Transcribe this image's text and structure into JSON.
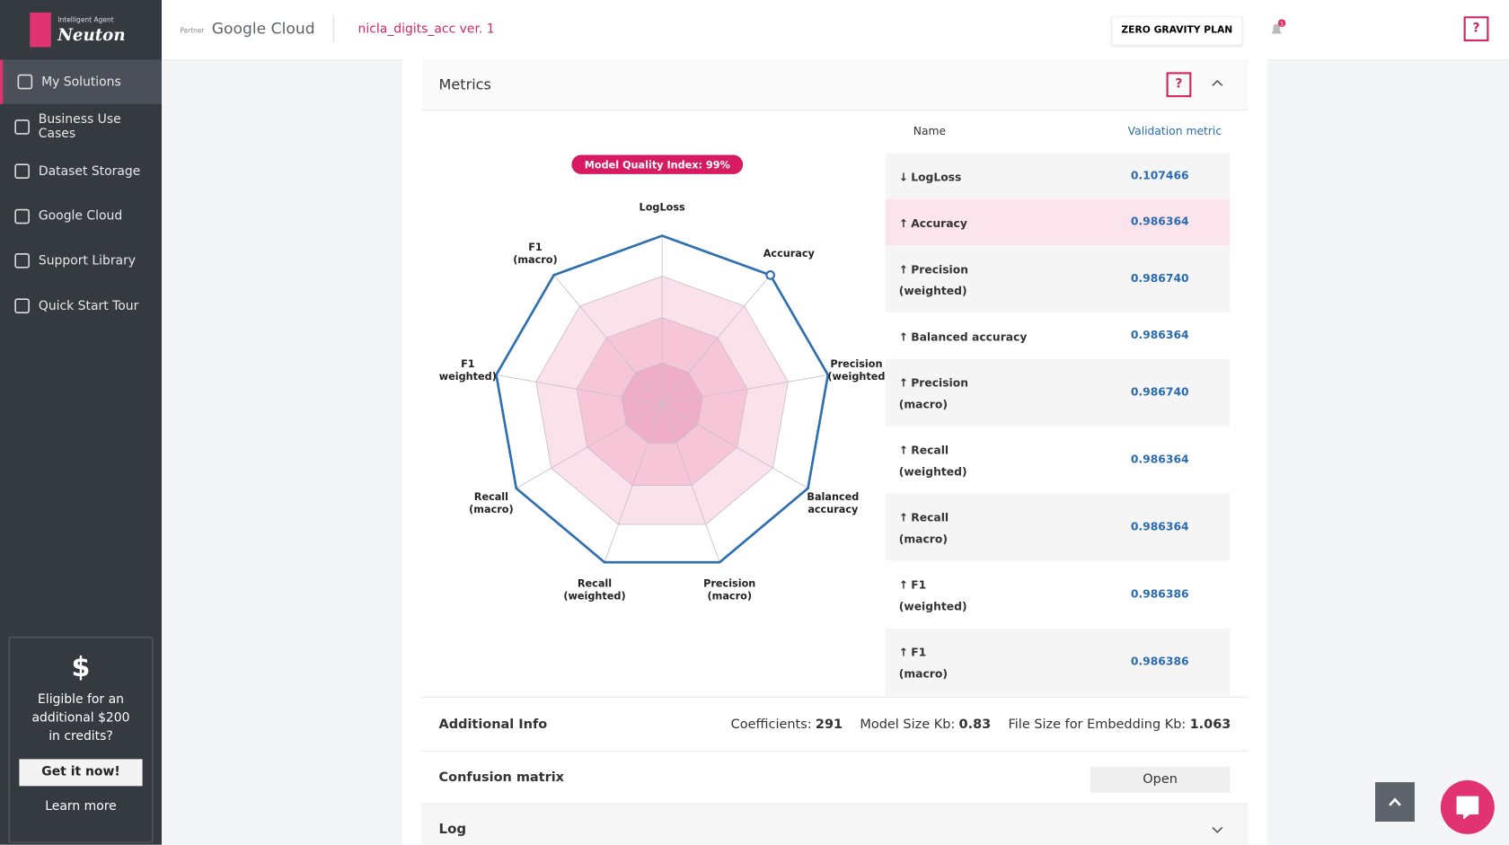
{
  "sidebar": {
    "brand_small": "Intelligent Agent",
    "brand": "Neuton",
    "menu": [
      "My Solutions",
      "Business Use Cases",
      "Dataset Storage",
      "Google Cloud",
      "Support Library",
      "Quick Start Tour"
    ],
    "promo": {
      "icon": "$",
      "text": "Eligible for an additional $200 in credits?",
      "button": "Get it now!",
      "link": "Learn more"
    }
  },
  "header": {
    "partner": "Partner",
    "cloud": "Google Cloud",
    "solution": "nicla_digits_acc ver. 1",
    "plan": "ZERO GRAVITY PLAN",
    "notifications": "1",
    "help": "?"
  },
  "metrics": {
    "title": "Metrics",
    "help": "?",
    "badge": "Model Quality Index: 99%",
    "radar_axes": [
      [
        "LogLoss"
      ],
      [
        "Accuracy"
      ],
      [
        "Precision",
        "(weighted"
      ],
      [
        "Balanced",
        "accuracy"
      ],
      [
        "Precision",
        "(macro)"
      ],
      [
        "Recall",
        "(weighted)"
      ],
      [
        "Recall",
        "(macro)"
      ],
      [
        "F1",
        "weighted)"
      ],
      [
        "F1",
        "(macro)"
      ]
    ],
    "table": {
      "headers": [
        "Name",
        "Validation metric"
      ],
      "rows": [
        {
          "arrow": "↓",
          "name": [
            "LogLoss"
          ],
          "value": "0.107466"
        },
        {
          "arrow": "↑",
          "name": [
            "Accuracy"
          ],
          "value": "0.986364"
        },
        {
          "arrow": "↑",
          "name": [
            "Precision",
            "(weighted)"
          ],
          "value": "0.986740"
        },
        {
          "arrow": "↑",
          "name": [
            "Balanced accuracy"
          ],
          "value": "0.986364"
        },
        {
          "arrow": "↑",
          "name": [
            "Precision",
            "(macro)"
          ],
          "value": "0.986740"
        },
        {
          "arrow": "↑",
          "name": [
            "Recall",
            "(weighted)"
          ],
          "value": "0.986364"
        },
        {
          "arrow": "↑",
          "name": [
            "Recall",
            "(macro)"
          ],
          "value": "0.986364"
        },
        {
          "arrow": "↑",
          "name": [
            "F1",
            "(weighted)"
          ],
          "value": "0.986386"
        },
        {
          "arrow": "↑",
          "name": [
            "F1",
            "(macro)"
          ],
          "value": "0.986386"
        }
      ]
    }
  },
  "additional_info": {
    "title": "Additional Info",
    "items": [
      {
        "label": "Coefficients:",
        "value": "291"
      },
      {
        "label": "Model Size Kb:",
        "value": "0.83"
      },
      {
        "label": "File Size for Embedding Kb:",
        "value": "1.063"
      }
    ]
  },
  "confusion": {
    "title": "Confusion matrix",
    "button": "Open"
  },
  "log": {
    "title": "Log"
  }
}
